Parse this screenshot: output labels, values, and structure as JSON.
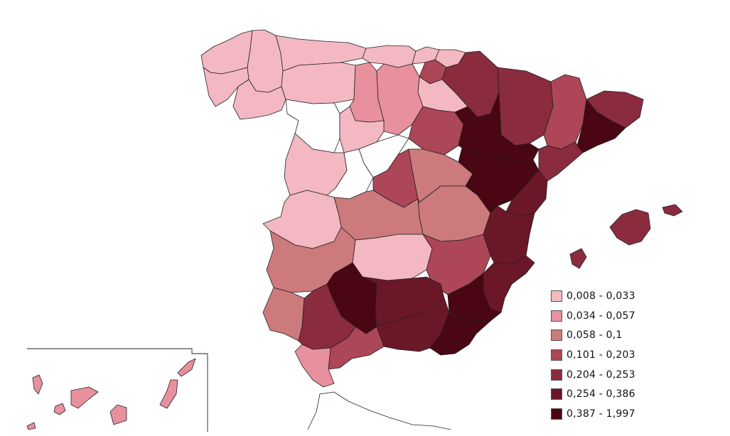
{
  "legend": {
    "items": [
      {
        "label": "0,008 - 0,033",
        "color": "#f4b8c2"
      },
      {
        "label": "0,034 - 0,057",
        "color": "#e8909d"
      },
      {
        "label": "0,058 - 0,1",
        "color": "#cc7a7c"
      },
      {
        "label": "0,101 - 0,203",
        "color": "#ad4657"
      },
      {
        "label": "0,204 - 0,253",
        "color": "#8b2b3e"
      },
      {
        "label": "0,254 - 0,386",
        "color": "#6b1728"
      },
      {
        "label": "0,387 - 1,997",
        "color": "#4a0612"
      }
    ]
  },
  "no_data_color": "#ffffff"
}
